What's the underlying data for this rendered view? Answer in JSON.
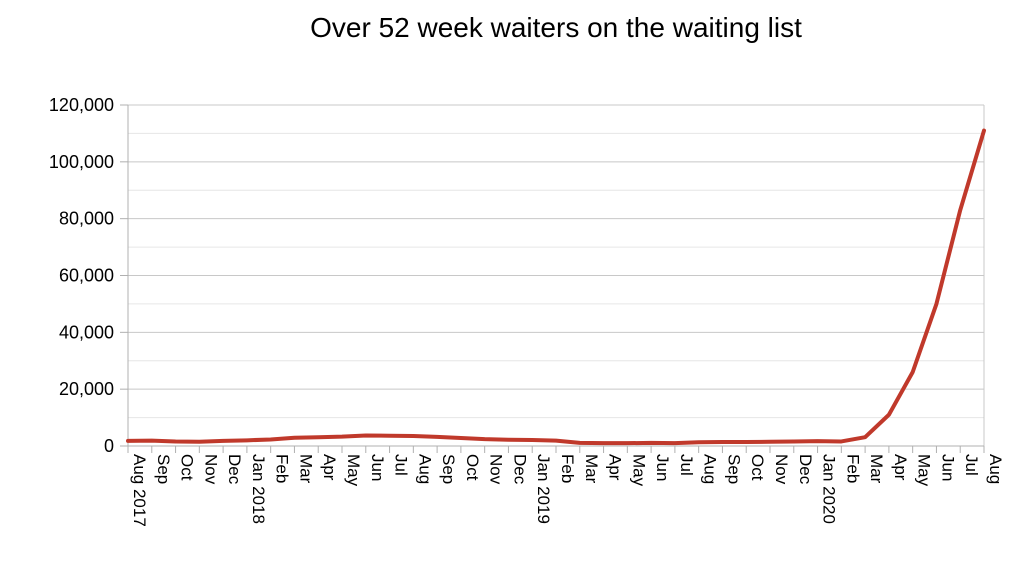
{
  "chart_data": {
    "type": "line",
    "title": "Over 52 week waiters on the waiting list",
    "xlabel": "",
    "ylabel": "",
    "ylim": [
      0,
      120000
    ],
    "y_ticks": [
      "0",
      "20,000",
      "40,000",
      "60,000",
      "80,000",
      "100,000",
      "120,000"
    ],
    "y_tick_values": [
      0,
      20000,
      40000,
      60000,
      80000,
      100000,
      120000
    ],
    "grid": true,
    "line_color": "#c0392b",
    "categories": [
      {
        "month": "Aug",
        "year": "2017"
      },
      {
        "month": "Sep",
        "year": ""
      },
      {
        "month": "Oct",
        "year": ""
      },
      {
        "month": "Nov",
        "year": ""
      },
      {
        "month": "Dec",
        "year": ""
      },
      {
        "month": "Jan",
        "year": "2018"
      },
      {
        "month": "Feb",
        "year": ""
      },
      {
        "month": "Mar",
        "year": ""
      },
      {
        "month": "Apr",
        "year": ""
      },
      {
        "month": "May",
        "year": ""
      },
      {
        "month": "Jun",
        "year": ""
      },
      {
        "month": "Jul",
        "year": ""
      },
      {
        "month": "Aug",
        "year": ""
      },
      {
        "month": "Sep",
        "year": ""
      },
      {
        "month": "Oct",
        "year": ""
      },
      {
        "month": "Nov",
        "year": ""
      },
      {
        "month": "Dec",
        "year": ""
      },
      {
        "month": "Jan",
        "year": "2019"
      },
      {
        "month": "Feb",
        "year": ""
      },
      {
        "month": "Mar",
        "year": ""
      },
      {
        "month": "Apr",
        "year": ""
      },
      {
        "month": "May",
        "year": ""
      },
      {
        "month": "Jun",
        "year": ""
      },
      {
        "month": "Jul",
        "year": ""
      },
      {
        "month": "Aug",
        "year": ""
      },
      {
        "month": "Sep",
        "year": ""
      },
      {
        "month": "Oct",
        "year": ""
      },
      {
        "month": "Nov",
        "year": ""
      },
      {
        "month": "Dec",
        "year": ""
      },
      {
        "month": "Jan",
        "year": "2020"
      },
      {
        "month": "Feb",
        "year": ""
      },
      {
        "month": "Mar",
        "year": ""
      },
      {
        "month": "Apr",
        "year": ""
      },
      {
        "month": "May",
        "year": ""
      },
      {
        "month": "Jun",
        "year": ""
      },
      {
        "month": "Jul",
        "year": ""
      },
      {
        "month": "Aug",
        "year": ""
      }
    ],
    "series": [
      {
        "values": [
          1800,
          1900,
          1600,
          1500,
          1800,
          2000,
          2300,
          2900,
          3100,
          3300,
          3700,
          3600,
          3500,
          3200,
          2800,
          2400,
          2200,
          2100,
          1900,
          1100,
          1000,
          1000,
          1100,
          1000,
          1300,
          1400,
          1400,
          1500,
          1600,
          1700,
          1600,
          3100,
          11000,
          26000,
          50000,
          83000,
          111000
        ]
      }
    ]
  }
}
